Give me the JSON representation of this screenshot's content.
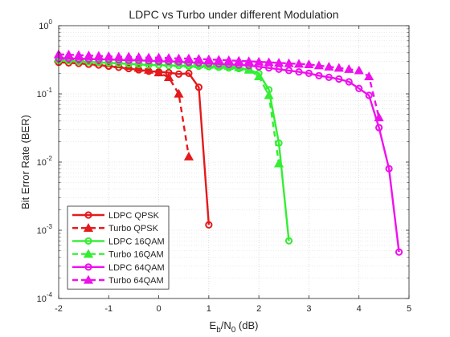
{
  "chart_data": {
    "type": "line",
    "title": "LDPC vs Turbo under different Modulation",
    "xlabel": {
      "base": "E",
      "sub1": "b",
      "mid": "/N",
      "sub2": "0",
      "tail": " (dB)"
    },
    "ylabel": "Bit Error Rate (BER)",
    "xscale": "linear",
    "yscale": "log",
    "xlim": [
      -2,
      5
    ],
    "ylim": [
      0.0001,
      1
    ],
    "xticks": [
      "-2",
      "-1",
      "0",
      "1",
      "2",
      "3",
      "4",
      "5"
    ],
    "yticks": [
      {
        "base": "10",
        "exp": "-4",
        "value": 0.0001
      },
      {
        "base": "10",
        "exp": "-3",
        "value": 0.001
      },
      {
        "base": "10",
        "exp": "-2",
        "value": 0.01
      },
      {
        "base": "10",
        "exp": "-1",
        "value": 0.1
      },
      {
        "base": "10",
        "exp": "0",
        "value": 1
      }
    ],
    "grid": true,
    "minor_grid": true,
    "legend_position": "bottom-left",
    "series": [
      {
        "name": "LDPC QPSK",
        "color": "#e41a1c",
        "marker": "circle",
        "linestyle": "solid",
        "x": [
          -2,
          -1.8,
          -1.6,
          -1.4,
          -1.2,
          -1.0,
          -0.8,
          -0.6,
          -0.4,
          -0.2,
          0.0,
          0.2,
          0.4,
          0.6,
          0.8,
          1.0
        ],
        "y": [
          0.29,
          0.285,
          0.28,
          0.272,
          0.265,
          0.255,
          0.245,
          0.235,
          0.225,
          0.215,
          0.21,
          0.205,
          0.195,
          0.2,
          0.125,
          0.0012
        ]
      },
      {
        "name": "Turbo QPSK",
        "color": "#e41a1c",
        "marker": "triangle",
        "linestyle": "dashed",
        "x": [
          -2,
          -1.8,
          -1.6,
          -1.4,
          -1.2,
          -1.0,
          -0.8,
          -0.6,
          -0.4,
          -0.2,
          0.0,
          0.2,
          0.4,
          0.6
        ],
        "y": [
          0.33,
          0.32,
          0.31,
          0.3,
          0.29,
          0.28,
          0.27,
          0.255,
          0.24,
          0.225,
          0.205,
          0.175,
          0.1,
          0.012
        ]
      },
      {
        "name": "LDPC 16QAM",
        "color": "#33ee33",
        "marker": "circle",
        "linestyle": "solid",
        "x": [
          -2,
          -1.8,
          -1.6,
          -1.4,
          -1.2,
          -1.0,
          -0.8,
          -0.6,
          -0.4,
          -0.2,
          0.0,
          0.2,
          0.4,
          0.6,
          0.8,
          1.0,
          1.2,
          1.4,
          1.6,
          1.8,
          2.0,
          2.2,
          2.4,
          2.6
        ],
        "y": [
          0.31,
          0.305,
          0.3,
          0.295,
          0.29,
          0.285,
          0.28,
          0.275,
          0.27,
          0.265,
          0.265,
          0.26,
          0.26,
          0.255,
          0.255,
          0.25,
          0.245,
          0.24,
          0.235,
          0.225,
          0.2,
          0.115,
          0.019,
          0.0007
        ]
      },
      {
        "name": "Turbo 16QAM",
        "color": "#33ee33",
        "marker": "triangle",
        "linestyle": "dashed",
        "x": [
          -2,
          -1.8,
          -1.6,
          -1.4,
          -1.2,
          -1.0,
          -0.8,
          -0.6,
          -0.4,
          -0.2,
          0.0,
          0.2,
          0.4,
          0.6,
          0.8,
          1.0,
          1.2,
          1.4,
          1.6,
          1.8,
          2.0,
          2.2,
          2.4
        ],
        "y": [
          0.34,
          0.335,
          0.33,
          0.325,
          0.32,
          0.315,
          0.31,
          0.305,
          0.3,
          0.295,
          0.29,
          0.285,
          0.28,
          0.275,
          0.27,
          0.265,
          0.26,
          0.255,
          0.245,
          0.225,
          0.18,
          0.095,
          0.0095
        ]
      },
      {
        "name": "LDPC 64QAM",
        "color": "#ee11ee",
        "marker": "circle",
        "linestyle": "solid",
        "x": [
          -2,
          -1.8,
          -1.6,
          -1.4,
          -1.2,
          -1.0,
          -0.8,
          -0.6,
          -0.4,
          -0.2,
          0.0,
          0.2,
          0.4,
          0.6,
          0.8,
          1.0,
          1.2,
          1.4,
          1.6,
          1.8,
          2.0,
          2.2,
          2.4,
          2.6,
          2.8,
          3.0,
          3.2,
          3.4,
          3.6,
          3.8,
          4.0,
          4.2,
          4.4,
          4.6,
          4.8
        ],
        "y": [
          0.33,
          0.33,
          0.325,
          0.325,
          0.32,
          0.32,
          0.315,
          0.31,
          0.31,
          0.305,
          0.3,
          0.3,
          0.295,
          0.29,
          0.285,
          0.28,
          0.275,
          0.27,
          0.265,
          0.26,
          0.25,
          0.24,
          0.23,
          0.22,
          0.21,
          0.2,
          0.185,
          0.175,
          0.165,
          0.15,
          0.12,
          0.095,
          0.032,
          0.008,
          0.00048
        ]
      },
      {
        "name": "Turbo 64QAM",
        "color": "#ee11ee",
        "marker": "triangle",
        "linestyle": "dashed",
        "x": [
          -2,
          -1.8,
          -1.6,
          -1.4,
          -1.2,
          -1.0,
          -0.8,
          -0.6,
          -0.4,
          -0.2,
          0.0,
          0.2,
          0.4,
          0.6,
          0.8,
          1.0,
          1.2,
          1.4,
          1.6,
          1.8,
          2.0,
          2.2,
          2.4,
          2.6,
          2.8,
          3.0,
          3.2,
          3.4,
          3.6,
          3.8,
          4.0,
          4.2,
          4.4
        ],
        "y": [
          0.38,
          0.375,
          0.37,
          0.365,
          0.36,
          0.355,
          0.35,
          0.35,
          0.345,
          0.34,
          0.34,
          0.335,
          0.33,
          0.33,
          0.325,
          0.32,
          0.315,
          0.31,
          0.305,
          0.3,
          0.295,
          0.29,
          0.285,
          0.28,
          0.275,
          0.27,
          0.26,
          0.25,
          0.24,
          0.23,
          0.22,
          0.18,
          0.045
        ]
      }
    ]
  }
}
